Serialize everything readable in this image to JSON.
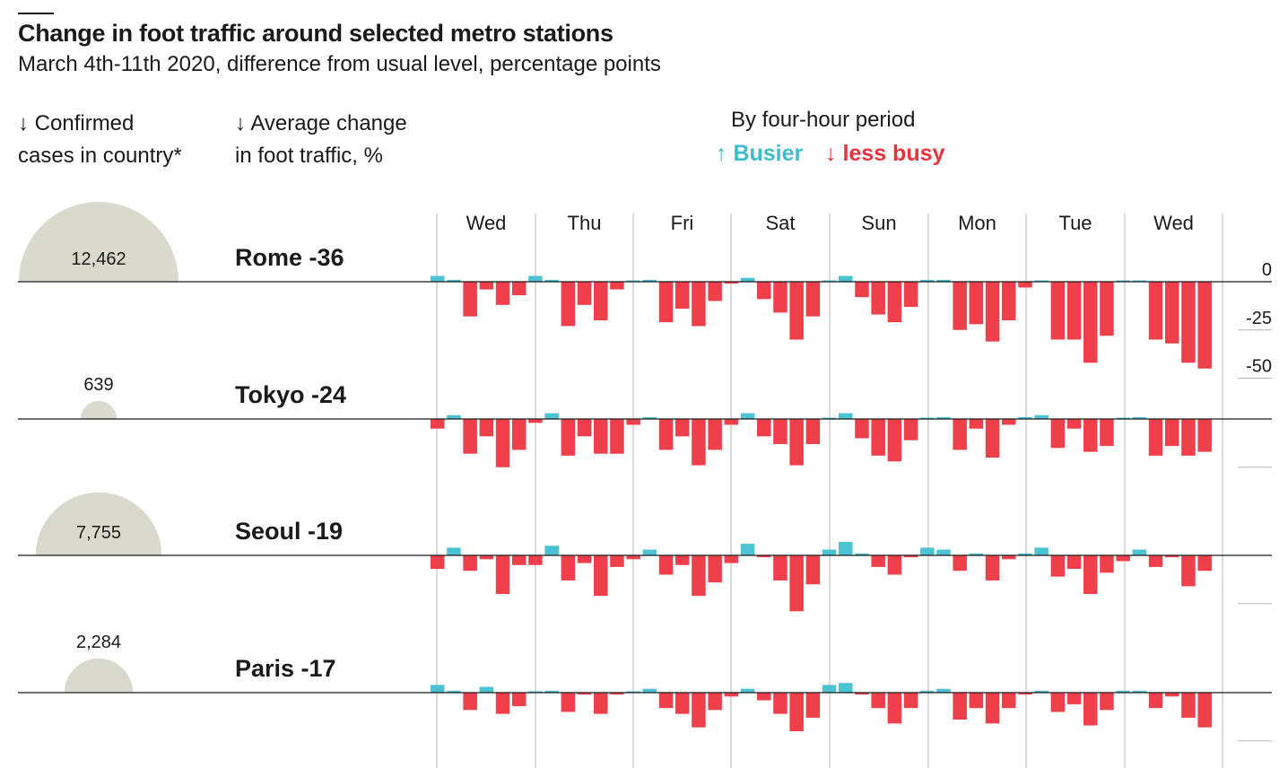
{
  "header": {
    "title": "Change in foot traffic around selected metro stations",
    "subtitle": "March 4th-11th 2020, difference from usual level, percentage points",
    "cases_label_1": "↓ Confirmed",
    "cases_label_2": "cases in country*",
    "avg_label_1": "↓ Average change",
    "avg_label_2": "in foot traffic, %",
    "period_label": "By four-hour period",
    "legend_busier": "↑ Busier",
    "legend_less": "↓ less busy"
  },
  "colors": {
    "busier": "#4cc3d3",
    "less_busy": "#ee3f4b",
    "cases_fill": "#d9d9ce",
    "rule": "#1a1a1a",
    "grid": "#b5b5b5"
  },
  "chart_data": {
    "type": "bar",
    "days": [
      "Wed",
      "Thu",
      "Fri",
      "Sat",
      "Sun",
      "Mon",
      "Tue",
      "Wed"
    ],
    "periods_per_day": 6,
    "y_ticks": [
      "0",
      "-25",
      "-50"
    ],
    "y_tick_values": [
      0,
      -25,
      -50
    ],
    "ylim": [
      -60,
      8
    ],
    "series": [
      {
        "name": "Rome",
        "label": "Rome -36",
        "average": -36,
        "cases": 12462,
        "cases_label": "12,462",
        "values": [
          3,
          1,
          -18,
          -4,
          -12,
          -7,
          3,
          1,
          -23,
          -12,
          -20,
          -4,
          0,
          1,
          -21,
          -14,
          -23,
          -10,
          -1,
          2,
          -9,
          -16,
          -30,
          -18,
          0,
          3,
          -8,
          -17,
          -21,
          -13,
          1,
          1,
          -25,
          -22,
          -31,
          -20,
          -3,
          0,
          -30,
          -30,
          -42,
          -28,
          0,
          0,
          -30,
          -32,
          -42,
          -45
        ]
      },
      {
        "name": "Tokyo",
        "label": "Tokyo -24",
        "average": -24,
        "cases": 639,
        "cases_label": "639",
        "values": [
          -5,
          2,
          -18,
          -9,
          -25,
          -16,
          -2,
          3,
          -19,
          -9,
          -18,
          -18,
          -3,
          1,
          -16,
          -9,
          -24,
          -16,
          -3,
          3,
          -9,
          -13,
          -24,
          -13,
          0,
          3,
          -10,
          -19,
          -22,
          -11,
          0,
          1,
          -16,
          -5,
          -20,
          -3,
          1,
          2,
          -15,
          -5,
          -17,
          -14,
          0,
          1,
          -19,
          -14,
          -19,
          -17
        ]
      },
      {
        "name": "Seoul",
        "label": "Seoul -19",
        "average": -19,
        "cases": 7755,
        "cases_label": "7,755",
        "values": [
          -7,
          4,
          -8,
          -2,
          -20,
          -5,
          -5,
          5,
          -13,
          -4,
          -21,
          -6,
          -2,
          3,
          -10,
          -5,
          -21,
          -14,
          -4,
          6,
          -1,
          -13,
          -29,
          -15,
          3,
          7,
          1,
          -6,
          -10,
          -1,
          4,
          3,
          -8,
          1,
          -13,
          -2,
          1,
          4,
          -11,
          -7,
          -20,
          -9,
          -3,
          3,
          -6,
          -1,
          -16,
          -8
        ]
      },
      {
        "name": "Paris",
        "label": "Paris -17",
        "average": -17,
        "cases": 2284,
        "cases_label": "2,284",
        "values": [
          4,
          1,
          -9,
          3,
          -11,
          -7,
          0,
          1,
          -10,
          -1,
          -11,
          -1,
          0,
          2,
          -8,
          -11,
          -18,
          -9,
          -2,
          2,
          -4,
          -11,
          -20,
          -13,
          4,
          5,
          -1,
          -8,
          -16,
          -8,
          1,
          2,
          -14,
          -8,
          -16,
          -8,
          -1,
          1,
          -10,
          -6,
          -17,
          -9,
          1,
          1,
          -8,
          -2,
          -13,
          -18
        ]
      }
    ]
  }
}
